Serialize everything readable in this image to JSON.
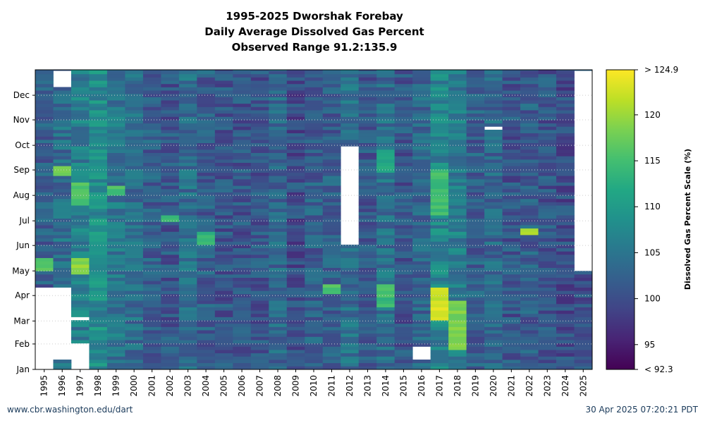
{
  "chart_data": {
    "type": "heatmap",
    "title_lines": [
      "1995-2025 Dworshak Forebay",
      "Daily Average Dissolved Gas Percent",
      "Observed Range 91.2:135.9"
    ],
    "x_categories": [
      "1995",
      "1996",
      "1997",
      "1998",
      "1999",
      "2000",
      "2001",
      "2002",
      "2003",
      "2004",
      "2005",
      "2006",
      "2007",
      "2008",
      "2009",
      "2010",
      "2011",
      "2012",
      "2013",
      "2014",
      "2015",
      "2016",
      "2017",
      "2018",
      "2019",
      "2020",
      "2021",
      "2022",
      "2023",
      "2024",
      "2025"
    ],
    "y_ticks": [
      "Jan",
      "Feb",
      "Mar",
      "Apr",
      "May",
      "Jun",
      "Jul",
      "Aug",
      "Sep",
      "Oct",
      "Nov",
      "Dec"
    ],
    "y_tick_days": [
      1,
      32,
      60,
      91,
      121,
      152,
      182,
      213,
      244,
      274,
      305,
      335
    ],
    "y_range_days": [
      1,
      366
    ],
    "value": "Dissolved gas percent (daily average), one cell per day of year per year",
    "colorbar": {
      "label": "Dissolved Gas Percent Scale (%)",
      "min": 92.3,
      "max": 124.9,
      "tick_labels": [
        "> 124.9",
        "120",
        "115",
        "110",
        "105",
        "100",
        "95",
        "< 92.3"
      ],
      "tick_values": [
        124.9,
        120,
        115,
        110,
        105,
        100,
        95,
        92.3
      ],
      "colormap": "viridis"
    },
    "typical_values_by_year": [
      {
        "year": "1995",
        "base": 102
      },
      {
        "year": "1996",
        "base": 104
      },
      {
        "year": "1997",
        "base": 106
      },
      {
        "year": "1998",
        "base": 108
      },
      {
        "year": "1999",
        "base": 105
      },
      {
        "year": "2000",
        "base": 104
      },
      {
        "year": "2001",
        "base": 102
      },
      {
        "year": "2002",
        "base": 101
      },
      {
        "year": "2003",
        "base": 104
      },
      {
        "year": "2004",
        "base": 102
      },
      {
        "year": "2005",
        "base": 101
      },
      {
        "year": "2006",
        "base": 101
      },
      {
        "year": "2007",
        "base": 101
      },
      {
        "year": "2008",
        "base": 103
      },
      {
        "year": "2009",
        "base": 100
      },
      {
        "year": "2010",
        "base": 102
      },
      {
        "year": "2011",
        "base": 102
      },
      {
        "year": "2012",
        "base": 104
      },
      {
        "year": "2013",
        "base": 101
      },
      {
        "year": "2014",
        "base": 104
      },
      {
        "year": "2015",
        "base": 101
      },
      {
        "year": "2016",
        "base": 103
      },
      {
        "year": "2017",
        "base": 107
      },
      {
        "year": "2018",
        "base": 106
      },
      {
        "year": "2019",
        "base": 102
      },
      {
        "year": "2020",
        "base": 103
      },
      {
        "year": "2021",
        "base": 101
      },
      {
        "year": "2022",
        "base": 102
      },
      {
        "year": "2023",
        "base": 101
      },
      {
        "year": "2024",
        "base": 100
      },
      {
        "year": "2025",
        "base": 100
      }
    ],
    "notable_highs": [
      {
        "year": "1995",
        "day_range": [
          120,
          135
        ],
        "value": 118
      },
      {
        "year": "1996",
        "day_range": [
          238,
          250
        ],
        "value": 119
      },
      {
        "year": "1997",
        "day_range": [
          200,
          230
        ],
        "value": 117
      },
      {
        "year": "1997",
        "day_range": [
          118,
          135
        ],
        "value": 121
      },
      {
        "year": "1999",
        "day_range": [
          212,
          225
        ],
        "value": 117
      },
      {
        "year": "2002",
        "day_range": [
          180,
          190
        ],
        "value": 115
      },
      {
        "year": "2004",
        "day_range": [
          155,
          170
        ],
        "value": 115
      },
      {
        "year": "2011",
        "day_range": [
          94,
          105
        ],
        "value": 117
      },
      {
        "year": "2014",
        "day_range": [
          240,
          270
        ],
        "value": 113
      },
      {
        "year": "2014",
        "day_range": [
          76,
          105
        ],
        "value": 116
      },
      {
        "year": "2017",
        "day_range": [
          190,
          245
        ],
        "value": 116
      },
      {
        "year": "2017",
        "day_range": [
          63,
          101
        ],
        "value": 124
      },
      {
        "year": "2018",
        "day_range": [
          26,
          85
        ],
        "value": 120
      },
      {
        "year": "2022",
        "day_range": [
          167,
          172
        ],
        "value": 122
      }
    ],
    "missing_data": [
      {
        "year": "1995",
        "day_range": [
          1,
          101
        ]
      },
      {
        "year": "1996",
        "day_range": [
          345,
          366
        ]
      },
      {
        "year": "1996",
        "day_range": [
          13,
          101
        ]
      },
      {
        "year": "1997",
        "day_range": [
          1,
          32
        ]
      },
      {
        "year": "1997",
        "day_range": [
          61,
          64
        ]
      },
      {
        "year": "2012",
        "day_range": [
          152,
          274
        ]
      },
      {
        "year": "2016",
        "day_range": [
          12,
          27
        ]
      },
      {
        "year": "2020",
        "day_range": [
          292,
          296
        ]
      },
      {
        "year": "2025",
        "day_range": [
          120,
          366
        ]
      }
    ]
  },
  "footer": {
    "left": "www.cbr.washington.edu/dart",
    "right": "30 Apr 2025 07:20:21 PDT"
  }
}
